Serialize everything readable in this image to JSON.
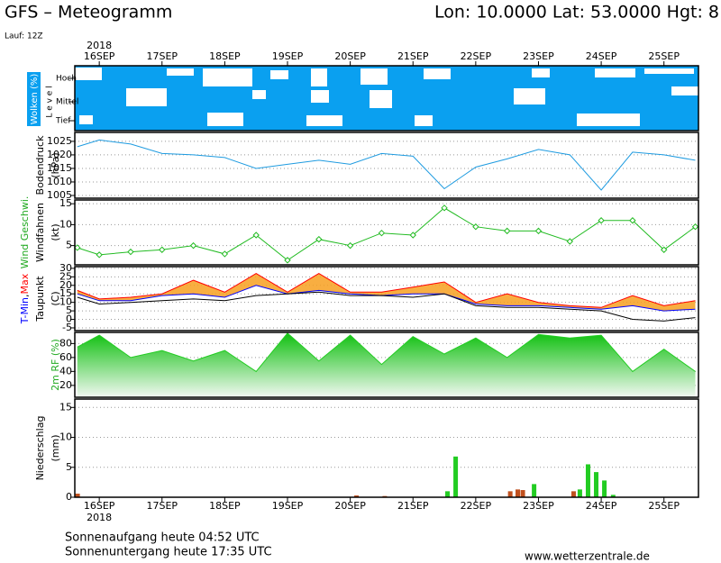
{
  "header": {
    "title": "GFS – Meteogramm",
    "location": "Lon: 10.0000  Lat: 53.0000  Hgt: 8",
    "run": "Lauf: 12Z"
  },
  "time_axis": {
    "year": "2018",
    "xlim": [
      -0.39,
      9.55
    ],
    "xticks": [
      {
        "value": 0,
        "label": "16SEP"
      },
      {
        "value": 1,
        "label": "17SEP"
      },
      {
        "value": 2,
        "label": "18SEP"
      },
      {
        "value": 3,
        "label": "19SEP"
      },
      {
        "value": 4,
        "label": "20SEP"
      },
      {
        "value": 5,
        "label": "21SEP"
      },
      {
        "value": 6,
        "label": "22SEP"
      },
      {
        "value": 7,
        "label": "23SEP"
      },
      {
        "value": 8,
        "label": "24SEP"
      },
      {
        "value": 9,
        "label": "25SEP"
      }
    ]
  },
  "footer": {
    "sunrise": "Sonnenaufgang heute 04:52 UTC",
    "sunset": "Sonnenuntergang heute 17:35 UTC",
    "source": "www.wetterzentrale.de"
  },
  "chart_data": [
    {
      "type": "cloud",
      "ylabel": "Wolken (%)",
      "level_label": "L e v e l",
      "levels": [
        "Hoch",
        "Mittel",
        "Tief"
      ],
      "color": "#0aa0f0"
    },
    {
      "type": "line",
      "ylabel": [
        "Bodendruck",
        "(hPa)"
      ],
      "ylim": [
        1004,
        1028.3
      ],
      "yticks": [
        1005,
        1010,
        1015,
        1020,
        1025
      ],
      "grid": true,
      "x": [
        -0.35,
        0,
        0.5,
        1,
        1.5,
        2,
        2.5,
        3,
        3.5,
        4,
        4.5,
        5,
        5.5,
        6,
        6.5,
        7,
        7.5,
        8,
        8.5,
        9,
        9.5
      ],
      "series": [
        {
          "color": "#1e9be0",
          "values": [
            1023,
            1025.5,
            1024,
            1020.5,
            1020,
            1019,
            1015,
            1016.5,
            1018,
            1016.5,
            1020.5,
            1019.5,
            1007.5,
            1015.5,
            1018.5,
            1022,
            1020,
            1007,
            1021,
            1020,
            1018
          ]
        }
      ]
    },
    {
      "type": "line",
      "ylabel_parts": [
        {
          "text": "Wind Geschwi.",
          "color": "#22aa22"
        }
      ],
      "ylabel": [
        "Windfahnen",
        "(kt)"
      ],
      "ylim": [
        0.4,
        15.9
      ],
      "yticks": [
        5,
        10,
        15
      ],
      "grid": true,
      "markers": true,
      "x": [
        -0.35,
        0,
        0.5,
        1,
        1.5,
        2,
        2.5,
        3,
        3.5,
        4,
        4.5,
        5,
        5.5,
        6,
        6.5,
        7,
        7.5,
        8,
        8.5,
        9,
        9.5
      ],
      "series": [
        {
          "color": "#22bb22",
          "values": [
            4.5,
            2.8,
            3.5,
            4,
            5,
            3,
            7.5,
            1.5,
            6.5,
            5,
            8,
            7.5,
            14,
            9.5,
            8.5,
            8.5,
            6,
            11,
            11,
            4,
            9.5
          ]
        }
      ]
    },
    {
      "type": "band",
      "ylabel_parts": [
        {
          "text": "T-Min",
          "color": "#0000ff"
        },
        {
          "text": ",",
          "color": "#000000"
        },
        {
          "text": "Max",
          "color": "#ff0000"
        }
      ],
      "ylabel": [
        "Taupunkt",
        "(C)"
      ],
      "ylim": [
        -6.6,
        31
      ],
      "yticks": [
        -5,
        0,
        5,
        10,
        15,
        20,
        25,
        30
      ],
      "grid": true,
      "band_color": "#f7a020",
      "x": [
        -0.35,
        0,
        0.5,
        1,
        1.5,
        2,
        2.5,
        3,
        3.5,
        4,
        4.5,
        5,
        5.5,
        6,
        6.5,
        7,
        7.5,
        8,
        8.5,
        9,
        9.5
      ],
      "series": [
        {
          "color": "#ff0000",
          "values": [
            17,
            12,
            13,
            15,
            23,
            16,
            27,
            16,
            27,
            16,
            16,
            19,
            22,
            10,
            15,
            10,
            8,
            7,
            14,
            8,
            11
          ]
        },
        {
          "color": "#0000ff",
          "values": [
            15,
            11,
            11,
            14,
            15,
            13,
            20,
            15,
            17,
            15,
            14,
            15,
            15,
            9,
            8,
            8,
            7,
            6,
            8,
            5,
            6
          ]
        },
        {
          "color": "#000000",
          "values": [
            13,
            9,
            10,
            11,
            12,
            11,
            14,
            15,
            16,
            14,
            14,
            13,
            15,
            8,
            7,
            7,
            6,
            5,
            0,
            -1,
            1
          ]
        }
      ]
    },
    {
      "type": "area",
      "ylabel": [
        "2m RF (%)"
      ],
      "ylabel_color": "#22aa22",
      "ylim": [
        3,
        96
      ],
      "yticks": [
        20,
        40,
        60,
        80
      ],
      "grid": true,
      "x": [
        -0.35,
        0,
        0.5,
        1,
        1.5,
        2,
        2.5,
        3,
        3.5,
        4,
        4.5,
        5,
        5.5,
        6,
        6.5,
        7,
        7.5,
        8,
        8.5,
        9,
        9.5
      ],
      "series": [
        {
          "color": "#22cc22",
          "values": [
            75,
            92,
            60,
            70,
            55,
            70,
            40,
            95,
            55,
            92,
            50,
            90,
            65,
            88,
            60,
            93,
            88,
            92,
            40,
            72,
            40
          ]
        }
      ]
    },
    {
      "type": "bar",
      "ylabel": [
        "Niederschlag",
        "(mm)"
      ],
      "ylim": [
        0,
        16.4
      ],
      "yticks": [
        0,
        5,
        10,
        15
      ],
      "grid": true,
      "series": [
        {
          "color": "#22cc22",
          "x": [
            5.55,
            5.68,
            6.93,
            7.66,
            7.79,
            7.92,
            8.05,
            8.19
          ],
          "values": [
            1.0,
            6.8,
            2.2,
            1.3,
            5.5,
            4.2,
            2.8,
            0.4
          ]
        },
        {
          "color": "#c0501e",
          "x": [
            -0.345,
            4.1,
            4.55,
            6.55,
            6.67,
            6.75,
            7.56
          ],
          "values": [
            0.6,
            0.3,
            0.2,
            1.0,
            1.3,
            1.2,
            1.0
          ]
        }
      ]
    }
  ]
}
